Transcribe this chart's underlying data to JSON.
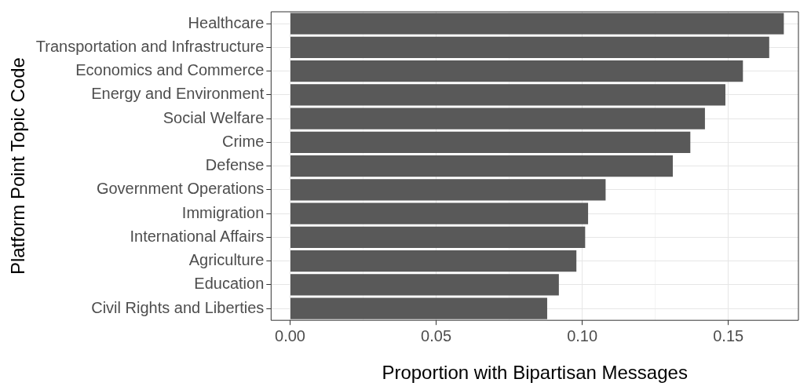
{
  "chart_data": {
    "type": "bar",
    "orientation": "horizontal",
    "xlabel": "Proportion with Bipartisan Messages",
    "ylabel": "Platform Point Topic Code",
    "categories": [
      "Healthcare",
      "Transportation and Infrastructure",
      "Economics and Commerce",
      "Energy and Environment",
      "Social Welfare",
      "Crime",
      "Defense",
      "Government Operations",
      "Immigration",
      "International Affairs",
      "Agriculture",
      "Education",
      "Civil Rights and Liberties"
    ],
    "values": [
      0.169,
      0.164,
      0.155,
      0.149,
      0.142,
      0.137,
      0.131,
      0.108,
      0.102,
      0.101,
      0.098,
      0.092,
      0.088
    ],
    "color": "#595959",
    "xlim": [
      -0.0065,
      0.174
    ],
    "xticks": [
      {
        "value": 0,
        "label": "0.00"
      },
      {
        "value": 0.025,
        "label": null
      },
      {
        "value": 0.05,
        "label": "0.05"
      },
      {
        "value": 0.075,
        "label": null
      },
      {
        "value": 0.1,
        "label": "0.10"
      },
      {
        "value": 0.125,
        "label": null
      },
      {
        "value": 0.15,
        "label": "0.15"
      }
    ],
    "grid": true,
    "legend": false
  }
}
